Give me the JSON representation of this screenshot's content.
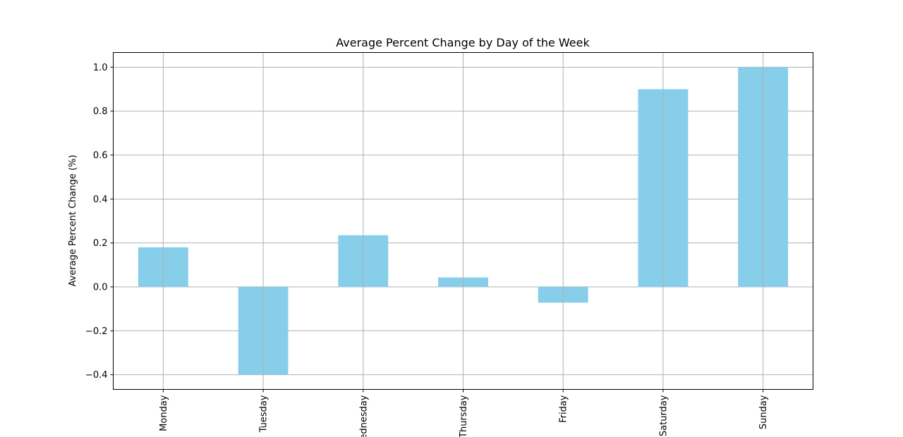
{
  "chart_data": {
    "type": "bar",
    "title": "Average Percent Change by Day of the Week",
    "xlabel": "",
    "ylabel": "Average Percent Change (%)",
    "categories": [
      "Monday",
      "Tuesday",
      "Wednesday",
      "Thursday",
      "Friday",
      "Saturday",
      "Sunday"
    ],
    "values": [
      0.18,
      -0.4,
      0.235,
      0.043,
      -0.072,
      0.9,
      1.0
    ],
    "ylim": [
      -0.467,
      1.067
    ],
    "yticks": [
      -0.4,
      -0.2,
      0.0,
      0.2,
      0.4,
      0.6,
      0.8,
      1.0
    ],
    "ytick_labels": [
      "−0.4",
      "−0.2",
      "0.0",
      "0.2",
      "0.4",
      "0.6",
      "0.8",
      "1.0"
    ],
    "grid": true,
    "bar_color": "#87CEEB",
    "grid_color": "#b0b0b0"
  }
}
